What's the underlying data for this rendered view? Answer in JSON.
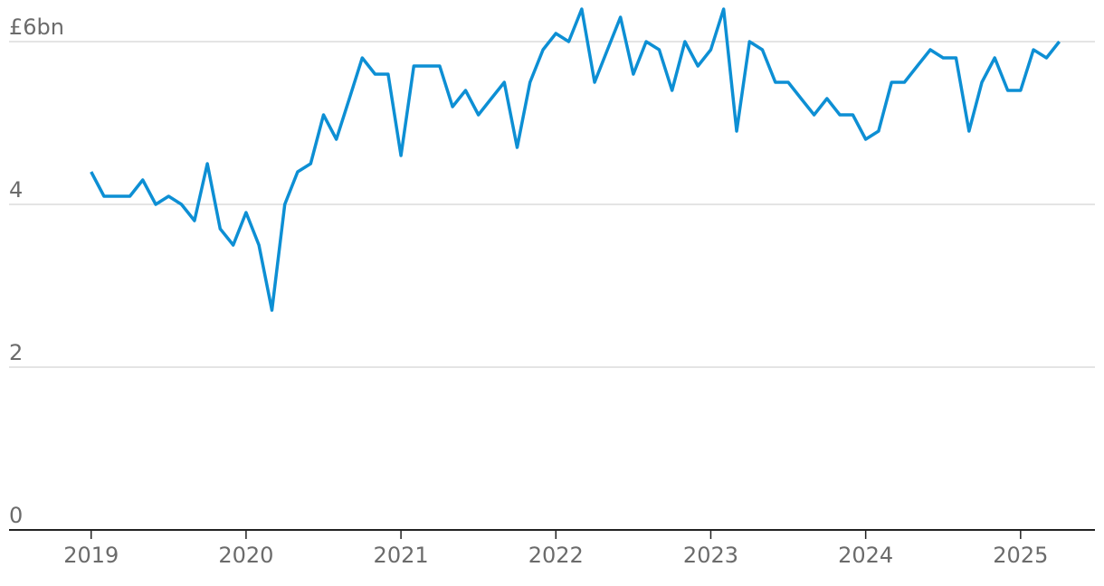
{
  "chart_data": {
    "type": "line",
    "x": [
      2019,
      2019.083,
      2019.167,
      2019.25,
      2019.333,
      2019.417,
      2019.5,
      2019.583,
      2019.667,
      2019.75,
      2019.833,
      2019.917,
      2020,
      2020.083,
      2020.167,
      2020.25,
      2020.333,
      2020.417,
      2020.5,
      2020.583,
      2020.667,
      2020.75,
      2020.833,
      2020.917,
      2021,
      2021.083,
      2021.167,
      2021.25,
      2021.333,
      2021.417,
      2021.5,
      2021.583,
      2021.667,
      2021.75,
      2021.833,
      2021.917,
      2022,
      2022.083,
      2022.167,
      2022.25,
      2022.333,
      2022.417,
      2022.5,
      2022.583,
      2022.667,
      2022.75,
      2022.833,
      2022.917,
      2023,
      2023.083,
      2023.167,
      2023.25,
      2023.333,
      2023.417,
      2023.5,
      2023.583,
      2023.667,
      2023.75,
      2023.833,
      2023.917,
      2024,
      2024.083,
      2024.167,
      2024.25,
      2024.333,
      2024.417,
      2024.5,
      2024.583,
      2024.667,
      2024.75,
      2024.833,
      2024.917,
      2025,
      2025.083,
      2025.167,
      2025.25
    ],
    "series": [
      {
        "color": "#0d8fd4",
        "values": [
          4.4,
          4.1,
          4.1,
          4.1,
          4.3,
          4.0,
          4.1,
          4.0,
          3.8,
          4.5,
          3.7,
          3.5,
          3.9,
          3.5,
          2.7,
          4.0,
          4.4,
          4.5,
          5.1,
          4.8,
          5.3,
          5.8,
          5.6,
          5.6,
          4.6,
          5.7,
          5.7,
          5.7,
          5.2,
          5.4,
          5.1,
          5.3,
          5.5,
          4.7,
          5.5,
          5.9,
          6.1,
          6.0,
          6.4,
          5.5,
          5.9,
          6.3,
          5.6,
          6.0,
          5.9,
          5.4,
          6.0,
          5.7,
          5.9,
          6.4,
          4.9,
          6.0,
          5.9,
          5.5,
          5.5,
          5.3,
          5.1,
          5.3,
          5.1,
          5.1,
          4.8,
          4.9,
          5.5,
          5.5,
          5.7,
          5.9,
          5.8,
          5.8,
          4.9,
          5.5,
          5.8,
          5.4,
          5.4,
          5.9,
          5.8,
          6.0
        ]
      }
    ],
    "xlim": [
      2018.47,
      2025.48
    ],
    "xticks": [
      2019,
      2020,
      2021,
      2022,
      2023,
      2024,
      2025
    ],
    "ylim": [
      0,
      6.4
    ],
    "yticks": [
      0,
      2,
      4,
      {
        "value": 6,
        "label": "£6bn"
      }
    ],
    "grid": true
  }
}
